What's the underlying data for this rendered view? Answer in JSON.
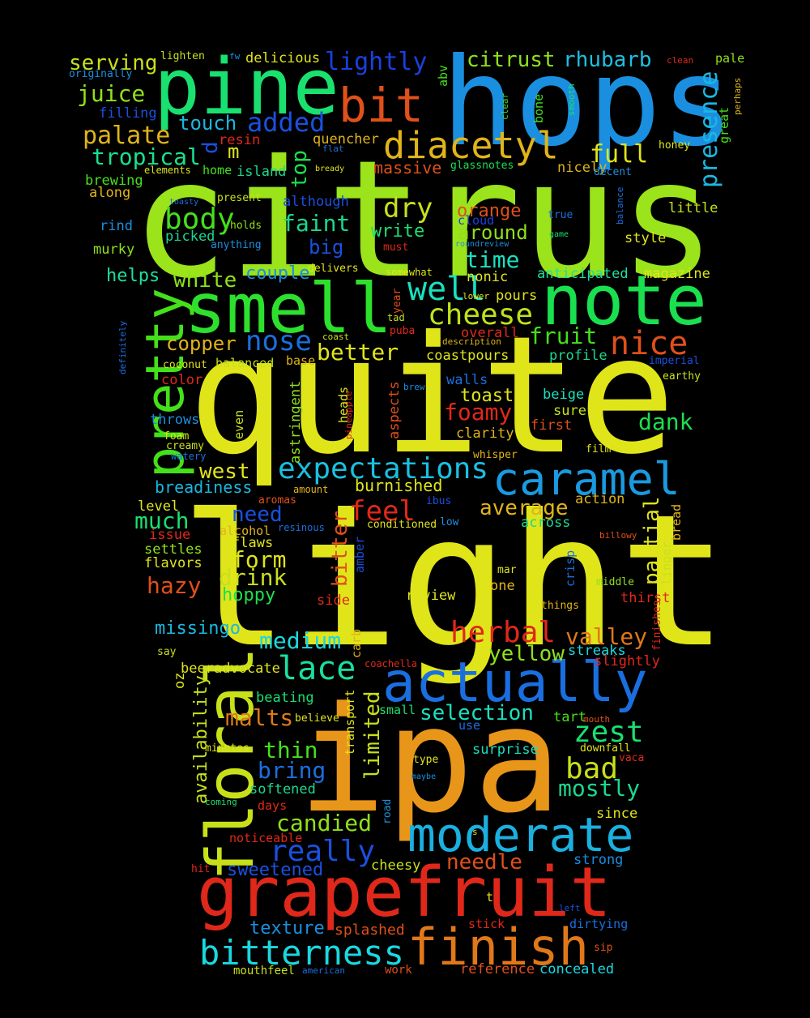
{
  "words": [
    "citrus",
    "quite",
    "light",
    "ipa",
    "hops",
    "pine",
    "smell",
    "note",
    "floral",
    "pretty",
    "grapefruit",
    "actually",
    "moderate",
    "finish",
    "bitterness",
    "caramel",
    "diacetyl",
    "bit",
    "expectations",
    "well",
    "cheese",
    "nice",
    "herbal",
    "lace",
    "zest",
    "bad",
    "mostly",
    "really",
    "added",
    "lightly",
    "citrust",
    "rhubarb",
    "presence",
    "serving",
    "juice",
    "palate",
    "tropical",
    "touch",
    "full",
    "top",
    "m",
    "d",
    "body",
    "faint",
    "dry",
    "orange",
    "around",
    "write",
    "big",
    "time",
    "couple",
    "white",
    "helps",
    "nose",
    "better",
    "fruit",
    "copper",
    "dank",
    "foamy",
    "toast",
    "west",
    "breadiness",
    "much",
    "need",
    "feel",
    "average",
    "form",
    "drink",
    "hoppy",
    "hazy",
    "missingo",
    "medium",
    "bitter",
    "partial",
    "valley",
    "yellow",
    "selection",
    "malts",
    "thin",
    "bring",
    "candied",
    "needle",
    "limited",
    "availability",
    "sweetened",
    "texture",
    "splashed",
    "mouthfeel",
    "american",
    "work",
    "reference",
    "concealed",
    "cheesy",
    "strong",
    "since",
    "surprise",
    "tart",
    "streaks",
    "slightly",
    "thirst",
    "finishes",
    "middle",
    "linger",
    "bread",
    "billowy",
    "action",
    "film",
    "first",
    "sure",
    "beige",
    "earthy",
    "imperial",
    "profile",
    "magazine",
    "anticipated",
    "style",
    "little",
    "true",
    "game",
    "nicely",
    "decent",
    "honey",
    "great",
    "perhaps",
    "pale",
    "clean",
    "abv",
    "clear",
    "bone",
    "smooth",
    "balance",
    "massive",
    "glassnotes",
    "quencher",
    "flat",
    "bready",
    "island",
    "home",
    "resin",
    "elements",
    "brewing",
    "along",
    "toasty",
    "present",
    "although",
    "rind",
    "holds",
    "picked",
    "murky",
    "anything",
    "cloud",
    "must",
    "roundreview",
    "delivers",
    "somewhat",
    "nonic",
    "pours",
    "year",
    "tad",
    "lower",
    "description",
    "overall",
    "puba",
    "coast",
    "coastpours",
    "base",
    "balanced",
    "coconut",
    "color",
    "walls",
    "brew",
    "definitely",
    "pineapple",
    "heads",
    "astringent",
    "aspects",
    "clarity",
    "whisper",
    "even",
    "throws",
    "foam",
    "creamy",
    "watery",
    "aromas",
    "amount",
    "burnished",
    "ibus",
    "level",
    "issue",
    "alcohol",
    "resinous",
    "conditioned",
    "low",
    "across",
    "settles",
    "flavors",
    "flaws",
    "amber",
    "crisp",
    "mar",
    "one",
    "side",
    "review",
    "things",
    "say",
    "carb",
    "beeradvocate",
    "oz",
    "coachella",
    "beating",
    "believe",
    "small",
    "transport",
    "use",
    "mouth",
    "minutes",
    "type",
    "downfall",
    "vaca",
    "maybe",
    "softened",
    "coming",
    "days",
    "road",
    "noticeable",
    "s",
    "hit",
    "t",
    "left",
    "stick",
    "dirtying",
    "sip",
    "lighten",
    "fw",
    "delicious",
    "originally",
    "filling"
  ],
  "colors": [
    "#9be31a",
    "#e0e51a",
    "#e0e51a",
    "#e8961a",
    "#1a8fe0",
    "#1ae070",
    "#2ee02e",
    "#1ae050",
    "#c8e01a",
    "#44e01a",
    "#e0281a",
    "#1a6fe0",
    "#1ab0e0",
    "#e0781a",
    "#1ad8e0",
    "#1a9ae0",
    "#e0b41a",
    "#e0501a",
    "#1ac0e0",
    "#1ae0c0",
    "#c0e01a",
    "#e0501a",
    "#e0281a",
    "#1ae0a0",
    "#1ae070",
    "#c8e01a",
    "#1ad890",
    "#1a50e0",
    "#1a50e0",
    "#1a40e0",
    "#90e01a",
    "#1ac0e0",
    "#1ab8e0",
    "#c8e01a",
    "#90e01a",
    "#e0b41a",
    "#1ae090",
    "#1ab8e0",
    "#e0e51a",
    "#1ae050",
    "#e0e51a",
    "#1a50e0",
    "#44e01a",
    "#1ad890",
    "#c8e01a",
    "#e0501a",
    "#90e01a",
    "#1ae070",
    "#1a50e0",
    "#1ae0c0",
    "#1a8fe0",
    "#90e01a",
    "#1ae0a0",
    "#1a6fe0",
    "#e0e51a",
    "#44e01a",
    "#e0b41a",
    "#1ae050",
    "#e0281a",
    "#e0e51a",
    "#e0e51a",
    "#1ab8e0",
    "#1ae070",
    "#1a50e0",
    "#e0281a",
    "#e0b41a",
    "#e0e51a",
    "#c8e01a",
    "#1ae050",
    "#e0501a",
    "#1ab8e0",
    "#1ad8e0",
    "#e0501a",
    "#e0e51a",
    "#e0781a",
    "#90e01a",
    "#1ae0c0",
    "#e0781a",
    "#44e01a",
    "#1a6fe0",
    "#90e01a",
    "#e0501a",
    "#c8e01a",
    "#c8e01a",
    "#1a50e0",
    "#1a8fe0",
    "#e0501a",
    "#c8e01a",
    "#1a6fe0",
    "#e0501a",
    "#e0501a",
    "#1ad8e0",
    "#c8e01a",
    "#1a8fe0",
    "#e0e51a",
    "#1ae0c0",
    "#44e01a",
    "#1ad8e0",
    "#e0281a",
    "#e0281a",
    "#e0281a",
    "#90e01a",
    "#c8e01a",
    "#e0b41a",
    "#e0501a",
    "#e0b41a",
    "#e0e51a",
    "#e0501a",
    "#c8e01a",
    "#1ae0c0",
    "#c8e01a",
    "#1a50e0",
    "#1ad890",
    "#e0e51a",
    "#1ae0a0",
    "#e0e51a",
    "#c8e01a",
    "#1a6fe0",
    "#1ae070",
    "#e0b41a",
    "#1a8fe0",
    "#e0e51a",
    "#44e01a",
    "#e0b41a",
    "#90e01a",
    "#e0281a",
    "#44e01a",
    "#44e01a",
    "#44e01a",
    "#1ae070",
    "#1a6fe0",
    "#e0501a",
    "#1ae050",
    "#e0b41a",
    "#1a6fe0",
    "#e0e51a",
    "#1ad890",
    "#44e01a",
    "#e0281a",
    "#e0e51a",
    "#44e01a",
    "#e0b41a",
    "#1a6fe0",
    "#c8e01a",
    "#1a50e0",
    "#1a8fe0",
    "#90e01a",
    "#1ad890",
    "#90e01a",
    "#1a8fe0",
    "#1a40e0",
    "#e0281a",
    "#1a8fe0",
    "#e0e51a",
    "#e0e51a",
    "#e0e51a",
    "#e0e51a",
    "#e0501a",
    "#c8e01a",
    "#e0e51a",
    "#e0b41a",
    "#e0281a",
    "#e0281a",
    "#c8e01a",
    "#e0e51a",
    "#e0b41a",
    "#c8e01a",
    "#e0e51a",
    "#e0281a",
    "#1a6fe0",
    "#1a8fe0",
    "#1a6fe0",
    "#e0281a",
    "#e0e51a",
    "#90e01a",
    "#e0501a",
    "#e0b41a",
    "#e0b41a",
    "#c8e01a",
    "#1a8fe0",
    "#e0e51a",
    "#c8e01a",
    "#1a6fe0",
    "#e0501a",
    "#e0b41a",
    "#e0e51a",
    "#1a50e0",
    "#e0e51a",
    "#e0281a",
    "#e0b41a",
    "#1a6fe0",
    "#e0e51a",
    "#1a8fe0",
    "#1ad890",
    "#90e01a",
    "#e0e51a",
    "#e0e51a",
    "#1a50e0",
    "#1a6fe0",
    "#e0e51a",
    "#e0b41a",
    "#e0281a",
    "#e0e51a",
    "#e0b41a",
    "#c8e01a",
    "#e0b41a",
    "#e0e51a",
    "#e0e51a",
    "#e0281a",
    "#1ae070",
    "#e0e51a",
    "#1ae070",
    "#e0e51a",
    "#1a6fe0",
    "#e0501a",
    "#e0e51a",
    "#e0e51a",
    "#e0e51a",
    "#e0281a",
    "#1a8fe0",
    "#1ad890",
    "#1ae070",
    "#e0281a",
    "#1a8fe0",
    "#e0281a",
    "#e0e51a",
    "#e0281a",
    "#e0e51a",
    "#1a50e0",
    "#e0281a",
    "#1a6fe0",
    "#e0501a",
    "#c8e01a",
    "#1a8fe0",
    "#e0e51a",
    "#1a8fe0",
    "#1a50e0"
  ]
}
